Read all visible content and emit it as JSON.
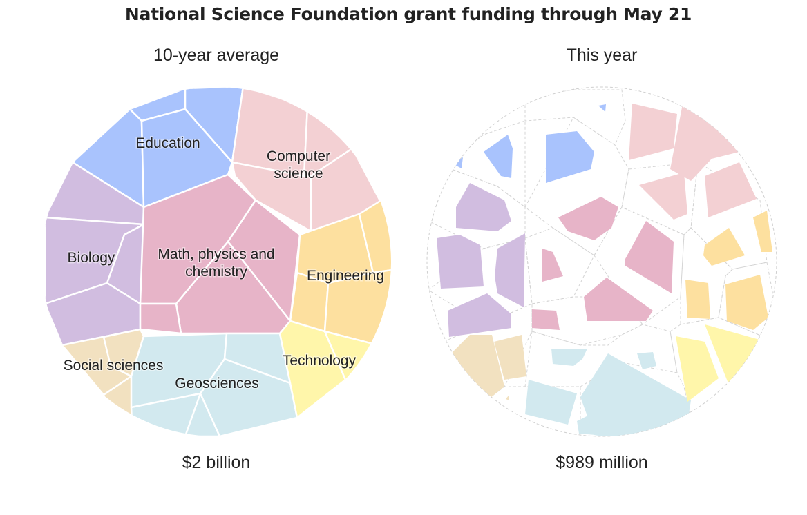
{
  "title": "National Science Foundation grant funding through May 21",
  "panels": {
    "left": {
      "subtitle": "10-year average",
      "total": "$2 billion"
    },
    "right": {
      "subtitle": "This year",
      "total": "$989 million"
    }
  },
  "colors": {
    "Education": "#a9c3fd",
    "Computer science": "#f3d0d3",
    "Biology": "#d1bde0",
    "Math, physics and chemistry": "#e7b4c8",
    "Engineering": "#fde09f",
    "Social sciences": "#f2e1c0",
    "Geosciences": "#d2e9ef",
    "Technology": "#fff6aa"
  },
  "chart_data": [
    {
      "type": "voronoi-treemap",
      "title": "10-year average",
      "total": "$2 billion",
      "categories": [
        {
          "name": "Education",
          "label": [
            "Education"
          ]
        },
        {
          "name": "Computer science",
          "label": [
            "Computer",
            "science"
          ]
        },
        {
          "name": "Biology",
          "label": [
            "Biology"
          ]
        },
        {
          "name": "Math, physics and chemistry",
          "label": [
            "Math, physics and",
            "chemistry"
          ]
        },
        {
          "name": "Engineering",
          "label": [
            "Engineering"
          ]
        },
        {
          "name": "Social sciences",
          "label": [
            "Social sciences"
          ]
        },
        {
          "name": "Geosciences",
          "label": [
            "Geosciences"
          ]
        },
        {
          "name": "Technology",
          "label": [
            "Technology"
          ]
        }
      ]
    },
    {
      "type": "voronoi-treemap",
      "title": "This year",
      "total": "$989 million",
      "categories": [
        {
          "name": "Education"
        },
        {
          "name": "Computer science"
        },
        {
          "name": "Biology"
        },
        {
          "name": "Math, physics and chemistry"
        },
        {
          "name": "Engineering"
        },
        {
          "name": "Social sciences"
        },
        {
          "name": "Geosciences"
        },
        {
          "name": "Technology"
        }
      ]
    }
  ]
}
